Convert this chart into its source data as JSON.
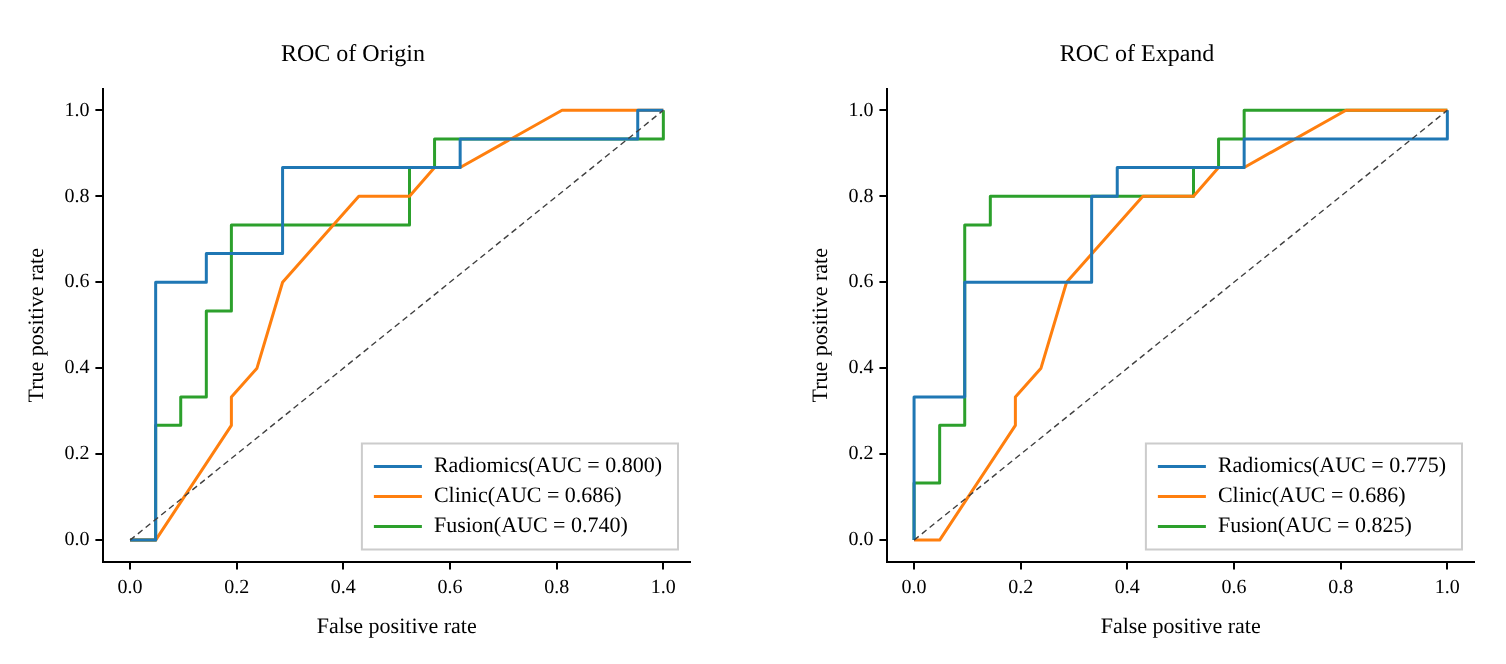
{
  "chart_data": [
    {
      "type": "line",
      "title": "ROC of Origin",
      "xlabel": "False positive rate",
      "ylabel": "True positive rate",
      "xlim": [
        -0.05,
        1.05
      ],
      "ylim": [
        -0.05,
        1.05
      ],
      "xticks": [
        {
          "value": 0,
          "label": "0.0"
        },
        {
          "value": 0.2,
          "label": "0.2"
        },
        {
          "value": 0.4,
          "label": "0.4"
        },
        {
          "value": 0.6,
          "label": "0.6"
        },
        {
          "value": 0.8,
          "label": "0.8"
        },
        {
          "value": 1,
          "label": "1.0"
        }
      ],
      "yticks": [
        {
          "value": 0,
          "label": "0.0"
        },
        {
          "value": 0.2,
          "label": "0.2"
        },
        {
          "value": 0.4,
          "label": "0.4"
        },
        {
          "value": 0.6,
          "label": "0.6"
        },
        {
          "value": 0.8,
          "label": "0.8"
        },
        {
          "value": 1,
          "label": "1.0"
        }
      ],
      "grid": false,
      "legend": "bottom right",
      "marker": "none",
      "series": [
        {
          "type": "line",
          "line_style": "dashed",
          "color": "#404040",
          "x": [
            0,
            1
          ],
          "values": [
            0,
            1
          ]
        },
        {
          "name": "Radiomics(AUC = 0.800)",
          "color": "#1f77b4",
          "x": [
            0,
            0.048,
            0.048,
            0.143,
            0.143,
            0.286,
            0.286,
            0.619,
            0.619,
            0.952,
            0.952,
            1
          ],
          "values": [
            0,
            0,
            0.6,
            0.6,
            0.667,
            0.667,
            0.867,
            0.867,
            0.933,
            0.933,
            1,
            1
          ]
        },
        {
          "name": "Clinic(AUC = 0.686)",
          "color": "#ff7f0e",
          "x": [
            0,
            0.048,
            0.19,
            0.19,
            0.238,
            0.286,
            0.429,
            0.524,
            0.571,
            0.619,
            0.81,
            1
          ],
          "values": [
            0,
            0,
            0.267,
            0.333,
            0.4,
            0.6,
            0.8,
            0.8,
            0.867,
            0.867,
            1,
            1
          ]
        },
        {
          "name": "Fusion(AUC = 0.740)",
          "color": "#2ca02c",
          "x": [
            0,
            0.048,
            0.048,
            0.095,
            0.095,
            0.143,
            0.143,
            0.19,
            0.19,
            0.524,
            0.524,
            0.571,
            0.571,
            1,
            1
          ],
          "values": [
            0,
            0,
            0.267,
            0.267,
            0.333,
            0.333,
            0.533,
            0.533,
            0.733,
            0.733,
            0.867,
            0.867,
            0.933,
            0.933,
            1
          ]
        }
      ]
    },
    {
      "type": "line",
      "title": "ROC of Expand",
      "xlabel": "False positive rate",
      "ylabel": "True positive rate",
      "xlim": [
        -0.05,
        1.05
      ],
      "ylim": [
        -0.05,
        1.05
      ],
      "xticks": [
        {
          "value": 0,
          "label": "0.0"
        },
        {
          "value": 0.2,
          "label": "0.2"
        },
        {
          "value": 0.4,
          "label": "0.4"
        },
        {
          "value": 0.6,
          "label": "0.6"
        },
        {
          "value": 0.8,
          "label": "0.8"
        },
        {
          "value": 1,
          "label": "1.0"
        }
      ],
      "yticks": [
        {
          "value": 0,
          "label": "0.0"
        },
        {
          "value": 0.2,
          "label": "0.2"
        },
        {
          "value": 0.4,
          "label": "0.4"
        },
        {
          "value": 0.6,
          "label": "0.6"
        },
        {
          "value": 0.8,
          "label": "0.8"
        },
        {
          "value": 1,
          "label": "1.0"
        }
      ],
      "grid": false,
      "legend": "bottom right",
      "marker": "none",
      "series": [
        {
          "type": "line",
          "line_style": "dashed",
          "color": "#404040",
          "x": [
            0,
            1
          ],
          "values": [
            0,
            1
          ]
        },
        {
          "name": "Radiomics(AUC = 0.775)",
          "color": "#1f77b4",
          "x": [
            0,
            0,
            0.095,
            0.095,
            0.333,
            0.333,
            0.381,
            0.381,
            0.619,
            0.619,
            1,
            1
          ],
          "values": [
            0,
            0.333,
            0.333,
            0.6,
            0.6,
            0.8,
            0.8,
            0.867,
            0.867,
            0.933,
            0.933,
            1
          ]
        },
        {
          "name": "Clinic(AUC = 0.686)",
          "color": "#ff7f0e",
          "x": [
            0,
            0.048,
            0.19,
            0.19,
            0.238,
            0.286,
            0.429,
            0.524,
            0.571,
            0.619,
            0.81,
            1
          ],
          "values": [
            0,
            0,
            0.267,
            0.333,
            0.4,
            0.6,
            0.8,
            0.8,
            0.867,
            0.867,
            1,
            1
          ]
        },
        {
          "name": "Fusion(AUC = 0.825)",
          "color": "#2ca02c",
          "x": [
            0,
            0,
            0.048,
            0.048,
            0.095,
            0.095,
            0.143,
            0.143,
            0.524,
            0.524,
            0.571,
            0.571,
            0.619,
            0.619,
            1
          ],
          "values": [
            0,
            0.133,
            0.133,
            0.267,
            0.267,
            0.733,
            0.733,
            0.8,
            0.8,
            0.867,
            0.867,
            0.933,
            0.933,
            1,
            1
          ]
        }
      ]
    }
  ]
}
